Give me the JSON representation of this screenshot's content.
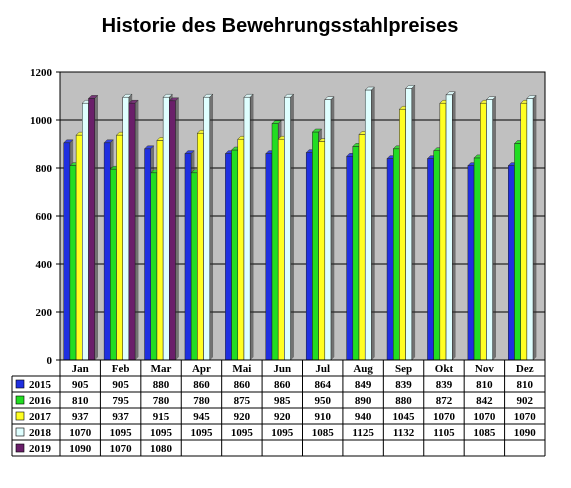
{
  "chart_data": {
    "type": "bar",
    "title": "Historie des Bewehrungsstahlpreises",
    "xlabel": "",
    "ylabel": "",
    "ylim": [
      0,
      1200
    ],
    "yticks": [
      0,
      200,
      400,
      600,
      800,
      1000,
      1200
    ],
    "ytick_labels": [
      "0",
      "200",
      "400",
      "600",
      "800",
      "1000",
      "1200"
    ],
    "grid": true,
    "legend": "table-left",
    "categories": [
      "Jan",
      "Feb",
      "Mar",
      "Apr",
      "Mai",
      "Jun",
      "Jul",
      "Aug",
      "Sep",
      "Okt",
      "Nov",
      "Dez"
    ],
    "series": [
      {
        "name": "2015",
        "color": "#1f2fe0",
        "values": [
          905,
          905,
          880,
          860,
          860,
          860,
          864,
          849,
          839,
          839,
          810,
          810
        ]
      },
      {
        "name": "2016",
        "color": "#22dd22",
        "values": [
          810,
          795,
          780,
          780,
          875,
          985,
          950,
          890,
          880,
          872,
          842,
          902
        ]
      },
      {
        "name": "2017",
        "color": "#ffff22",
        "values": [
          937,
          937,
          915,
          945,
          920,
          920,
          910,
          940,
          1045,
          1070,
          1070,
          1070
        ]
      },
      {
        "name": "2018",
        "color": "#dfffff",
        "values": [
          1070,
          1095,
          1095,
          1095,
          1095,
          1095,
          1085,
          1125,
          1132,
          1105,
          1085,
          1090
        ]
      },
      {
        "name": "2019",
        "color": "#6a1f6a",
        "values": [
          1090,
          1070,
          1080,
          null,
          null,
          null,
          null,
          null,
          null,
          null,
          null,
          null
        ]
      }
    ]
  }
}
